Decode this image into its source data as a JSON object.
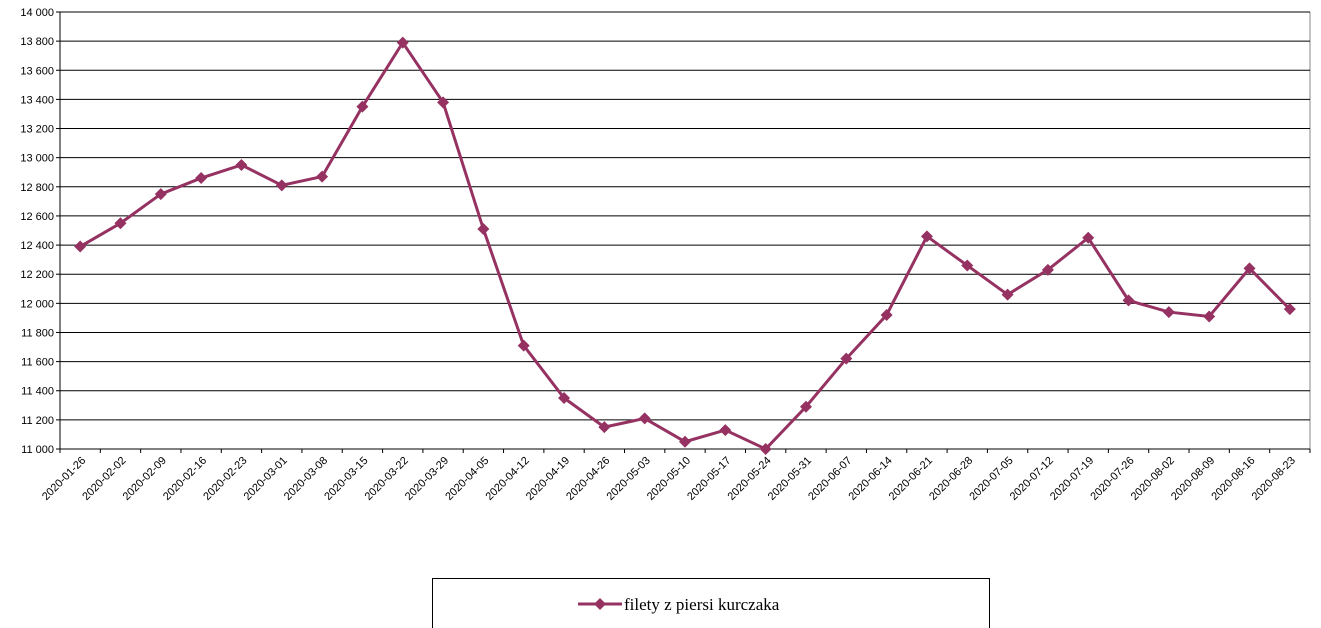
{
  "chart_data": {
    "type": "line",
    "categories": [
      "2020-01-26",
      "2020-02-02",
      "2020-02-09",
      "2020-02-16",
      "2020-02-23",
      "2020-03-01",
      "2020-03-08",
      "2020-03-15",
      "2020-03-22",
      "2020-03-29",
      "2020-04-05",
      "2020-04-12",
      "2020-04-19",
      "2020-04-26",
      "2020-05-03",
      "2020-05-10",
      "2020-05-17",
      "2020-05-24",
      "2020-05-31",
      "2020-06-07",
      "2020-06-14",
      "2020-06-21",
      "2020-06-28",
      "2020-07-05",
      "2020-07-12",
      "2020-07-19",
      "2020-07-26",
      "2020-08-02",
      "2020-08-09",
      "2020-08-16",
      "2020-08-23"
    ],
    "series": [
      {
        "name": "filety z piersi kurczaka",
        "color": "#953262",
        "values": [
          12390,
          12550,
          12750,
          12860,
          12950,
          12810,
          12870,
          13350,
          13790,
          13380,
          12510,
          11710,
          11350,
          11150,
          11210,
          11050,
          11130,
          11000,
          11290,
          11620,
          11920,
          12460,
          12260,
          12060,
          12230,
          12450,
          12020,
          11940,
          11910,
          12240,
          11960
        ]
      }
    ],
    "ylim": [
      11000,
      14000
    ],
    "yticks": [
      {
        "value": 11000,
        "label": "11 000"
      },
      {
        "value": 11200,
        "label": "11 200"
      },
      {
        "value": 11400,
        "label": "11 400"
      },
      {
        "value": 11600,
        "label": "11 600"
      },
      {
        "value": 11800,
        "label": "11 800"
      },
      {
        "value": 12000,
        "label": "12 000"
      },
      {
        "value": 12200,
        "label": "12 200"
      },
      {
        "value": 12400,
        "label": "12 400"
      },
      {
        "value": 12600,
        "label": "12 600"
      },
      {
        "value": 12800,
        "label": "12 800"
      },
      {
        "value": 13000,
        "label": "13 000"
      },
      {
        "value": 13200,
        "label": "13 200"
      },
      {
        "value": 13400,
        "label": "13 400"
      },
      {
        "value": 13600,
        "label": "13 600"
      },
      {
        "value": 13800,
        "label": "13 800"
      },
      {
        "value": 14000,
        "label": "14 000"
      }
    ],
    "grid": true,
    "legend": "bottom"
  }
}
